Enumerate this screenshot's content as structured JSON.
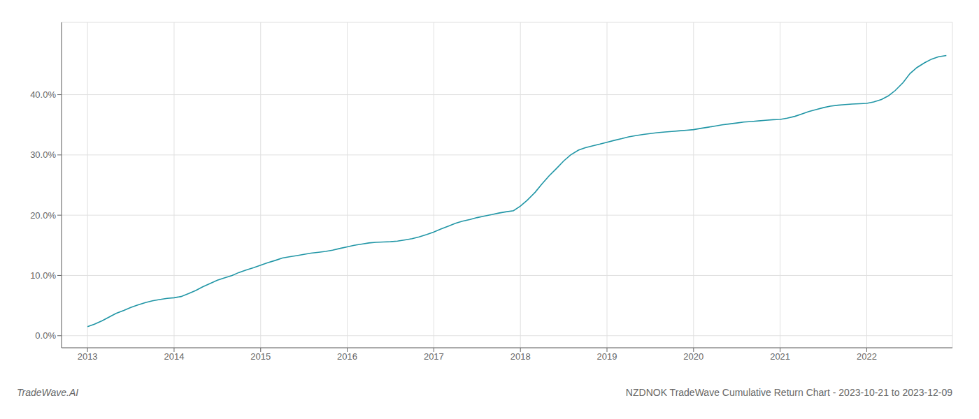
{
  "chart_data": {
    "type": "line",
    "title": "NZDNOK TradeWave Cumulative Return Chart - 2023-10-21 to 2023-12-09",
    "annotations": [
      "TradeWave.AI"
    ],
    "color": "#2196a6",
    "grid": true,
    "x": [
      2013.0,
      2013.08,
      2013.17,
      2013.25,
      2013.33,
      2013.42,
      2013.5,
      2013.58,
      2013.67,
      2013.75,
      2013.83,
      2013.92,
      2014.0,
      2014.08,
      2014.17,
      2014.25,
      2014.33,
      2014.42,
      2014.5,
      2014.58,
      2014.67,
      2014.75,
      2014.83,
      2014.92,
      2015.0,
      2015.08,
      2015.17,
      2015.25,
      2015.33,
      2015.42,
      2015.5,
      2015.58,
      2015.67,
      2015.75,
      2015.83,
      2015.92,
      2016.0,
      2016.08,
      2016.17,
      2016.25,
      2016.33,
      2016.42,
      2016.5,
      2016.58,
      2016.67,
      2016.75,
      2016.83,
      2016.92,
      2017.0,
      2017.08,
      2017.17,
      2017.25,
      2017.33,
      2017.42,
      2017.5,
      2017.58,
      2017.67,
      2017.75,
      2017.83,
      2017.92,
      2018.0,
      2018.08,
      2018.17,
      2018.25,
      2018.33,
      2018.42,
      2018.5,
      2018.58,
      2018.67,
      2018.75,
      2018.83,
      2018.92,
      2019.0,
      2019.08,
      2019.17,
      2019.25,
      2019.33,
      2019.42,
      2019.5,
      2019.58,
      2019.67,
      2019.75,
      2019.83,
      2019.92,
      2020.0,
      2020.08,
      2020.17,
      2020.25,
      2020.33,
      2020.42,
      2020.5,
      2020.58,
      2020.67,
      2020.75,
      2020.83,
      2020.92,
      2021.0,
      2021.08,
      2021.17,
      2021.25,
      2021.33,
      2021.42,
      2021.5,
      2021.58,
      2021.67,
      2021.75,
      2021.83,
      2021.92,
      2022.0,
      2022.08,
      2022.17,
      2022.25,
      2022.33,
      2022.42,
      2022.5,
      2022.58,
      2022.67,
      2022.75,
      2022.83,
      2022.92
    ],
    "values": [
      1.5,
      1.9,
      2.5,
      3.1,
      3.7,
      4.2,
      4.7,
      5.1,
      5.5,
      5.8,
      6.0,
      6.2,
      6.3,
      6.5,
      7.0,
      7.5,
      8.1,
      8.7,
      9.2,
      9.6,
      10.0,
      10.5,
      10.9,
      11.3,
      11.7,
      12.1,
      12.5,
      12.9,
      13.1,
      13.3,
      13.5,
      13.7,
      13.85,
      14.0,
      14.2,
      14.5,
      14.75,
      15.0,
      15.2,
      15.4,
      15.5,
      15.55,
      15.6,
      15.7,
      15.9,
      16.1,
      16.4,
      16.8,
      17.2,
      17.7,
      18.2,
      18.65,
      19.0,
      19.3,
      19.6,
      19.85,
      20.1,
      20.35,
      20.55,
      20.75,
      21.5,
      22.5,
      23.8,
      25.2,
      26.5,
      27.8,
      29.0,
      30.0,
      30.8,
      31.2,
      31.5,
      31.8,
      32.1,
      32.4,
      32.7,
      33.0,
      33.2,
      33.4,
      33.55,
      33.7,
      33.8,
      33.9,
      34.0,
      34.1,
      34.2,
      34.4,
      34.6,
      34.8,
      35.0,
      35.15,
      35.3,
      35.45,
      35.55,
      35.65,
      35.75,
      35.85,
      35.9,
      36.1,
      36.4,
      36.8,
      37.2,
      37.55,
      37.85,
      38.1,
      38.25,
      38.35,
      38.45,
      38.5,
      38.55,
      38.8,
      39.2,
      39.8,
      40.7,
      42.0,
      43.5,
      44.5,
      45.3,
      45.9,
      46.3,
      46.5
    ],
    "xlim": [
      2012.7,
      2022.99
    ],
    "ylim": [
      -2,
      52
    ],
    "xticks": [
      2013,
      2014,
      2015,
      2016,
      2017,
      2018,
      2019,
      2020,
      2021,
      2022
    ],
    "yticks": [
      {
        "value": 0.0,
        "label": "0.0%"
      },
      {
        "value": 10.0,
        "label": "10.0%"
      },
      {
        "value": 20.0,
        "label": "20.0%"
      },
      {
        "value": 30.0,
        "label": "30.0%"
      },
      {
        "value": 40.0,
        "label": "40.0%"
      }
    ]
  }
}
